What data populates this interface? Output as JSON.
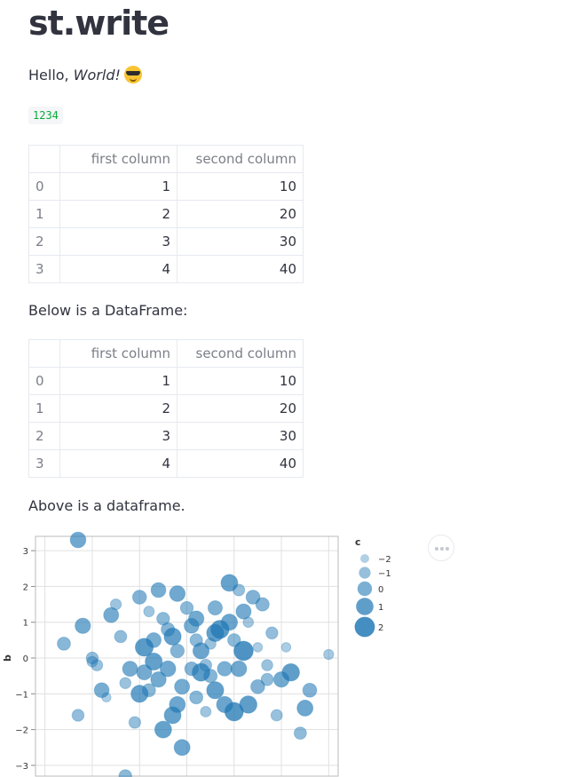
{
  "header": {
    "title": "st.write"
  },
  "hello": {
    "prefix": "Hello, ",
    "italic": "World!"
  },
  "code_value": "1234",
  "table1": {
    "columns": [
      "first column",
      "second column"
    ],
    "rows": [
      [
        "0",
        "1",
        "10"
      ],
      [
        "1",
        "2",
        "20"
      ],
      [
        "2",
        "3",
        "30"
      ],
      [
        "3",
        "4",
        "40"
      ]
    ]
  },
  "below_text": "Below is a DataFrame:",
  "table2": {
    "columns": [
      "first column",
      "second column"
    ],
    "rows": [
      [
        "0",
        "1",
        "10"
      ],
      [
        "1",
        "2",
        "20"
      ],
      [
        "2",
        "3",
        "30"
      ],
      [
        "3",
        "4",
        "40"
      ]
    ]
  },
  "above_text": "Above is a dataframe.",
  "chart_data": {
    "type": "scatter",
    "ylabel": "b",
    "xlabel": "",
    "ylim": [
      -3.3,
      3.4
    ],
    "yticks": [
      3,
      2,
      1,
      0,
      -1,
      -2,
      -3
    ],
    "legend": {
      "title": "c",
      "entries": [
        "−2",
        "−1",
        "0",
        "1",
        "2"
      ],
      "position": "right"
    },
    "color": "#1f77b4",
    "points": [
      [
        -2.3,
        3.3,
        0.4
      ],
      [
        -1.3,
        -3.3,
        -0.6
      ],
      [
        -1.5,
        1.5,
        -1.3
      ],
      [
        -2.6,
        0.4,
        -0.5
      ],
      [
        -2.2,
        0.9,
        0.3
      ],
      [
        -1.9,
        -0.2,
        -1.1
      ],
      [
        -1.7,
        -1.1,
        -1.9
      ],
      [
        -2.3,
        -1.6,
        -0.9
      ],
      [
        -1.0,
        1.7,
        -0.2
      ],
      [
        -0.8,
        1.3,
        -1.4
      ],
      [
        -0.6,
        1.9,
        0.1
      ],
      [
        -0.5,
        1.1,
        -0.6
      ],
      [
        -0.3,
        0.6,
        0.9
      ],
      [
        -0.9,
        0.3,
        1.2
      ],
      [
        -0.7,
        -0.1,
        0.9
      ],
      [
        -0.4,
        -0.3,
        0.4
      ],
      [
        -0.2,
        0.2,
        -0.3
      ],
      [
        0.1,
        0.9,
        0.1
      ],
      [
        0.3,
        0.2,
        0.6
      ],
      [
        0.5,
        -0.5,
        -0.4
      ],
      [
        0.7,
        0.8,
        1.3
      ],
      [
        0.9,
        2.1,
        0.8
      ],
      [
        1.1,
        1.9,
        -1.0
      ],
      [
        1.3,
        1.0,
        -1.5
      ],
      [
        1.5,
        0.3,
        -1.8
      ],
      [
        1.7,
        -0.2,
        -1.2
      ],
      [
        2.0,
        -0.6,
        0.3
      ],
      [
        2.2,
        -0.4,
        1.0
      ],
      [
        2.6,
        -0.9,
        -0.2
      ],
      [
        3.0,
        0.1,
        -1.6
      ],
      [
        -0.1,
        -0.8,
        0.2
      ],
      [
        0.2,
        -1.1,
        -0.5
      ],
      [
        0.6,
        -0.9,
        0.9
      ],
      [
        0.8,
        -1.3,
        0.6
      ],
      [
        1.0,
        -1.5,
        1.4
      ],
      [
        1.3,
        -1.3,
        1.0
      ],
      [
        1.7,
        -0.6,
        -0.8
      ],
      [
        1.9,
        -1.6,
        -1.1
      ],
      [
        -0.5,
        -2.0,
        0.8
      ],
      [
        -0.1,
        -2.5,
        0.5
      ],
      [
        -1.1,
        -1.8,
        -1.0
      ],
      [
        -0.3,
        -1.6,
        0.8
      ],
      [
        0.4,
        -0.2,
        -0.9
      ],
      [
        0.2,
        0.5,
        -0.7
      ],
      [
        0.0,
        1.4,
        -0.6
      ],
      [
        -0.2,
        1.8,
        0.4
      ],
      [
        0.6,
        1.4,
        -0.1
      ],
      [
        0.9,
        1.0,
        0.6
      ],
      [
        1.2,
        0.2,
        1.7
      ],
      [
        0.8,
        -0.3,
        0.0
      ],
      [
        0.5,
        0.4,
        -1.2
      ],
      [
        0.3,
        -0.4,
        1.1
      ],
      [
        -0.4,
        0.8,
        -0.4
      ],
      [
        -0.6,
        -0.6,
        0.3
      ],
      [
        -0.8,
        -0.9,
        -0.5
      ],
      [
        -1.0,
        -1.0,
        0.9
      ],
      [
        -1.2,
        -0.3,
        0.2
      ],
      [
        -1.4,
        0.6,
        -0.8
      ],
      [
        -1.6,
        1.2,
        0.2
      ],
      [
        -2.0,
        0.0,
        -0.9
      ],
      [
        1.6,
        1.5,
        -0.4
      ],
      [
        1.4,
        1.7,
        -0.2
      ],
      [
        1.2,
        1.3,
        0.2
      ],
      [
        1.0,
        0.5,
        -0.6
      ],
      [
        0.6,
        0.7,
        0.9
      ],
      [
        0.1,
        -0.3,
        -0.3
      ],
      [
        -0.2,
        -1.3,
        0.5
      ],
      [
        0.4,
        -1.5,
        -1.4
      ],
      [
        1.1,
        -0.3,
        0.4
      ],
      [
        2.4,
        -2.1,
        -0.8
      ],
      [
        -1.8,
        -0.9,
        0.1
      ],
      [
        -2.0,
        -0.1,
        -1.4
      ],
      [
        -0.9,
        -0.4,
        0.2
      ],
      [
        1.5,
        -0.8,
        -0.2
      ],
      [
        2.5,
        -1.4,
        0.5
      ],
      [
        -0.7,
        0.5,
        0.1
      ],
      [
        -1.3,
        -0.7,
        -1.2
      ],
      [
        0.2,
        1.1,
        0.3
      ],
      [
        1.8,
        0.7,
        -0.9
      ],
      [
        2.1,
        0.3,
        -1.8
      ]
    ]
  }
}
